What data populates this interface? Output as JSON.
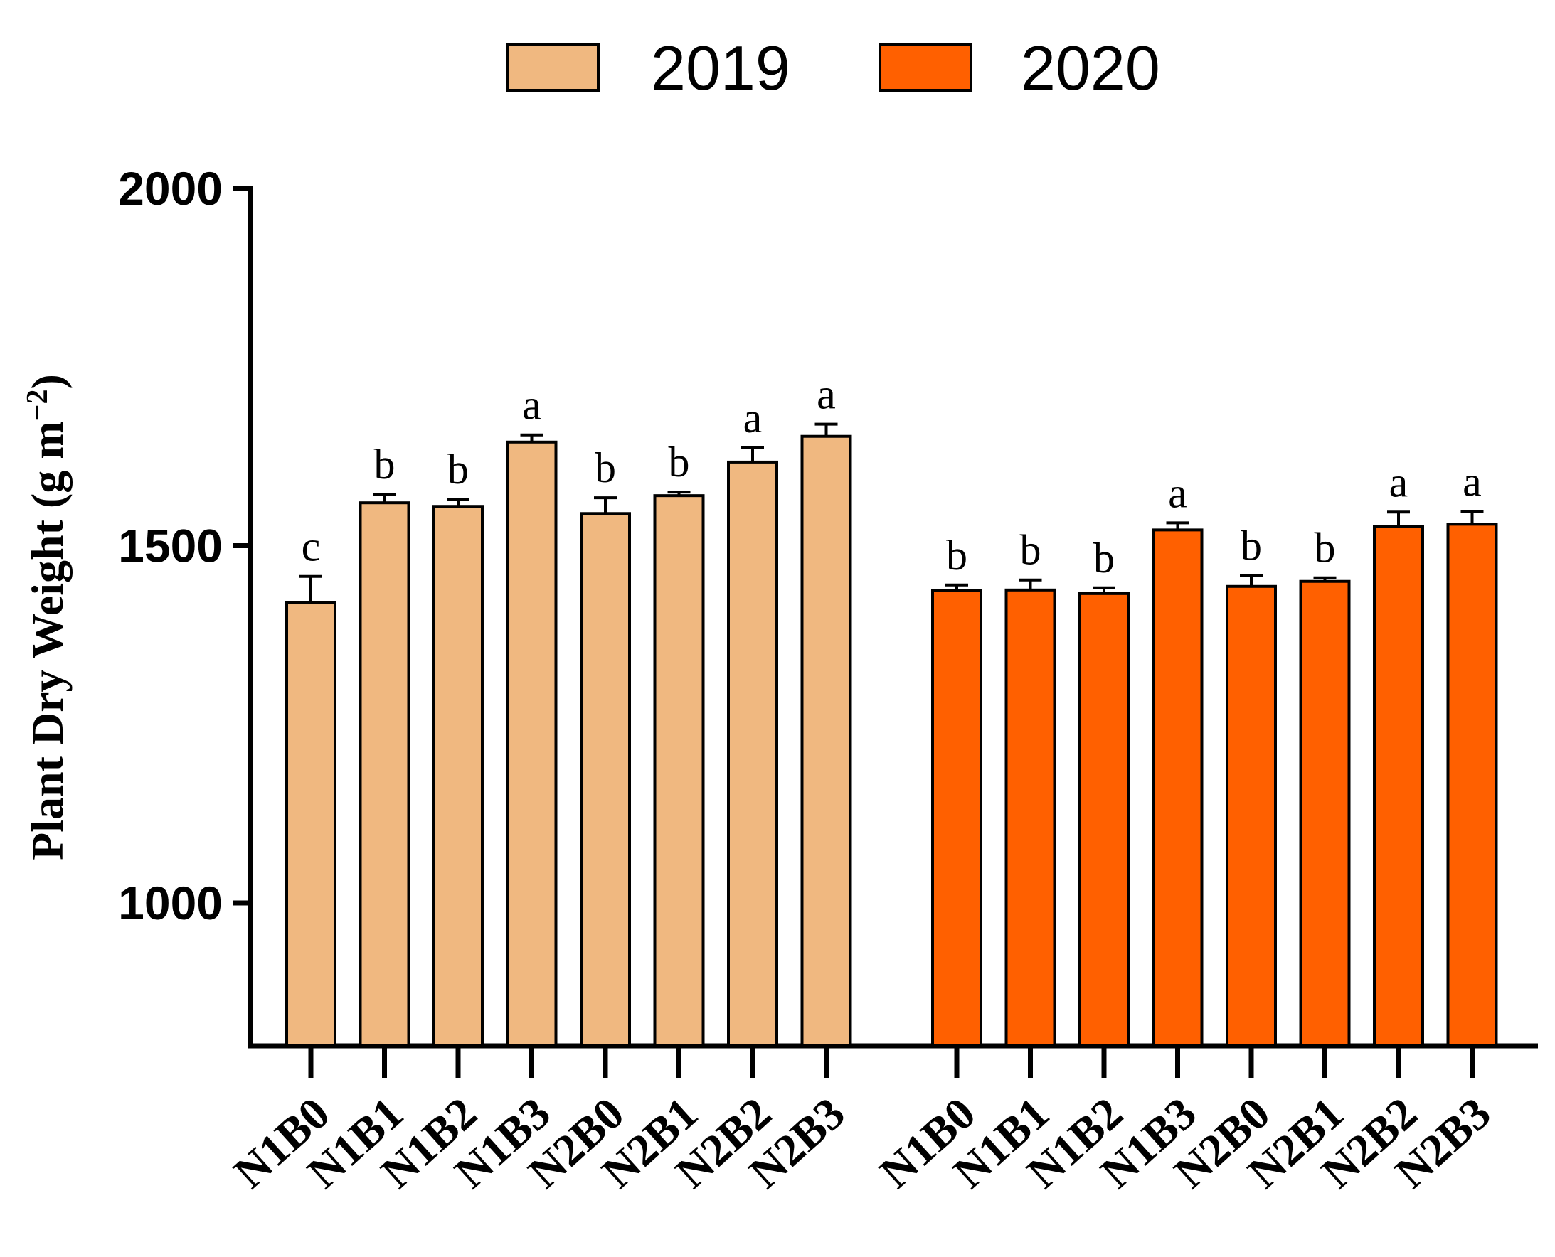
{
  "chart_data": {
    "type": "bar",
    "title": "",
    "xlabel": "",
    "ylabel": "Plant Dry Weight (g m",
    "ylabel_sup": "−2",
    "ylabel_close": ")",
    "ylim": [
      800,
      2000
    ],
    "yticks": [
      1000,
      1500,
      2000
    ],
    "ytick_labels": [
      "1000",
      "1500",
      "2000"
    ],
    "categories": [
      "N1B0",
      "N1B1",
      "N1B2",
      "N1B3",
      "N2B0",
      "N2B1",
      "N2B2",
      "N2B3"
    ],
    "legend": [
      "2019",
      "2020"
    ],
    "series": [
      {
        "name": "2019",
        "color": "#F0B880",
        "values": [
          1420,
          1560,
          1555,
          1645,
          1545,
          1570,
          1617,
          1653
        ],
        "errors": [
          37,
          12,
          10,
          10,
          22,
          5,
          20,
          17
        ],
        "letters": [
          "c",
          "b",
          "b",
          "a",
          "b",
          "b",
          "a",
          "a"
        ]
      },
      {
        "name": "2020",
        "color": "#FF6000",
        "values": [
          1437,
          1438,
          1433,
          1522,
          1443,
          1450,
          1527,
          1530
        ],
        "errors": [
          8,
          14,
          8,
          10,
          15,
          5,
          20,
          18
        ],
        "letters": [
          "b",
          "b",
          "b",
          "a",
          "b",
          "b",
          "a",
          "a"
        ]
      }
    ]
  }
}
